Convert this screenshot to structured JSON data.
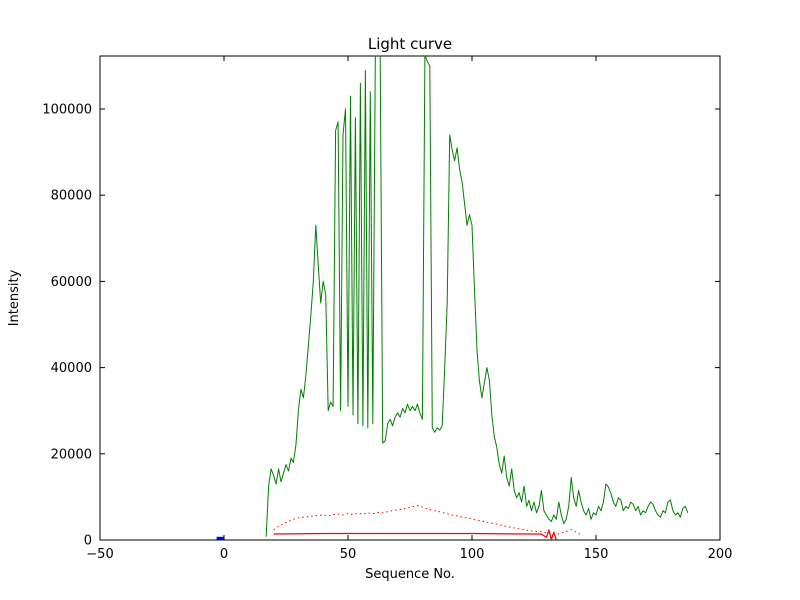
{
  "title": "Light curve",
  "chart_data": {
    "type": "line",
    "title": "Light curve",
    "xlabel": "Sequence No.",
    "ylabel": "Intensity",
    "xlim": [
      -50,
      200
    ],
    "ylim": [
      0,
      112300
    ],
    "xticks": [
      -50,
      0,
      50,
      100,
      150,
      200
    ],
    "xtick_labels": [
      "−50",
      "0",
      "50",
      "100",
      "150",
      "200"
    ],
    "yticks": [
      0,
      20000,
      40000,
      60000,
      80000,
      100000
    ],
    "ytick_labels": [
      "0",
      "20000",
      "40000",
      "60000",
      "80000",
      "100000"
    ],
    "grid": false,
    "legend": null,
    "background_color": "#ffffff",
    "axes_color": "#000000",
    "series": [
      {
        "name": "main-intensity-green",
        "color": "#008000",
        "style": "solid",
        "width": 1,
        "points": [
          [
            17,
            800
          ],
          [
            18,
            12500
          ],
          [
            19,
            16500
          ],
          [
            20,
            15000
          ],
          [
            21,
            13000
          ],
          [
            22,
            16500
          ],
          [
            23,
            13500
          ],
          [
            24,
            15500
          ],
          [
            25,
            17500
          ],
          [
            26,
            16000
          ],
          [
            27,
            19000
          ],
          [
            28,
            18000
          ],
          [
            29,
            22000
          ],
          [
            30,
            30000
          ],
          [
            31,
            35000
          ],
          [
            32,
            33000
          ],
          [
            33,
            38000
          ],
          [
            34,
            45000
          ],
          [
            35,
            52000
          ],
          [
            36,
            60000
          ],
          [
            37,
            73000
          ],
          [
            38,
            64000
          ],
          [
            39,
            55000
          ],
          [
            40,
            60000
          ],
          [
            41,
            57000
          ],
          [
            42,
            30000
          ],
          [
            43,
            32000
          ],
          [
            44,
            31000
          ],
          [
            45,
            95000
          ],
          [
            46,
            97000
          ],
          [
            47,
            30000
          ],
          [
            48,
            94000
          ],
          [
            49,
            100000
          ],
          [
            50,
            31000
          ],
          [
            51,
            103000
          ],
          [
            52,
            29000
          ],
          [
            53,
            98000
          ],
          [
            54,
            27000
          ],
          [
            55,
            106000
          ],
          [
            56,
            26500
          ],
          [
            57,
            109000
          ],
          [
            58,
            26000
          ],
          [
            59,
            104000
          ],
          [
            60,
            27000
          ],
          [
            61,
            112000
          ],
          [
            62,
            113500
          ],
          [
            63,
            112000
          ],
          [
            64,
            22500
          ],
          [
            65,
            23000
          ],
          [
            66,
            27000
          ],
          [
            67,
            28000
          ],
          [
            68,
            26500
          ],
          [
            69,
            28500
          ],
          [
            70,
            29500
          ],
          [
            71,
            28500
          ],
          [
            72,
            30500
          ],
          [
            73,
            29500
          ],
          [
            74,
            31500
          ],
          [
            75,
            30000
          ],
          [
            76,
            31000
          ],
          [
            77,
            30000
          ],
          [
            78,
            31500
          ],
          [
            79,
            29500
          ],
          [
            80,
            28000
          ],
          [
            81,
            112500
          ],
          [
            82,
            111000
          ],
          [
            83,
            110000
          ],
          [
            84,
            26000
          ],
          [
            85,
            25000
          ],
          [
            86,
            26000
          ],
          [
            87,
            25500
          ],
          [
            88,
            26500
          ],
          [
            89,
            40000
          ],
          [
            90,
            55000
          ],
          [
            91,
            94000
          ],
          [
            92,
            90500
          ],
          [
            93,
            88000
          ],
          [
            94,
            91000
          ],
          [
            95,
            86000
          ],
          [
            96,
            83000
          ],
          [
            97,
            78000
          ],
          [
            98,
            73000
          ],
          [
            99,
            75500
          ],
          [
            100,
            73000
          ],
          [
            101,
            58000
          ],
          [
            102,
            44000
          ],
          [
            103,
            37000
          ],
          [
            104,
            33000
          ],
          [
            105,
            36500
          ],
          [
            106,
            40000
          ],
          [
            107,
            37000
          ],
          [
            108,
            29000
          ],
          [
            109,
            24000
          ],
          [
            110,
            21500
          ],
          [
            111,
            17500
          ],
          [
            112,
            15500
          ],
          [
            113,
            19500
          ],
          [
            114,
            14500
          ],
          [
            115,
            12500
          ],
          [
            116,
            16500
          ],
          [
            117,
            11500
          ],
          [
            118,
            9800
          ],
          [
            119,
            11000
          ],
          [
            120,
            8800
          ],
          [
            121,
            12500
          ],
          [
            122,
            7800
          ],
          [
            123,
            9200
          ],
          [
            124,
            6800
          ],
          [
            125,
            8800
          ],
          [
            126,
            6300
          ],
          [
            127,
            7800
          ],
          [
            128,
            11500
          ],
          [
            129,
            6800
          ],
          [
            130,
            5800
          ],
          [
            131,
            4800
          ],
          [
            132,
            4300
          ],
          [
            133,
            5800
          ],
          [
            134,
            4800
          ],
          [
            135,
            8800
          ],
          [
            136,
            5800
          ],
          [
            137,
            3800
          ],
          [
            138,
            4800
          ],
          [
            139,
            7800
          ],
          [
            140,
            14500
          ],
          [
            141,
            9800
          ],
          [
            142,
            7800
          ],
          [
            143,
            11500
          ],
          [
            144,
            8800
          ],
          [
            145,
            6800
          ],
          [
            146,
            5800
          ],
          [
            147,
            7300
          ],
          [
            148,
            4800
          ],
          [
            149,
            6300
          ],
          [
            150,
            5800
          ],
          [
            151,
            7800
          ],
          [
            152,
            6800
          ],
          [
            153,
            8800
          ],
          [
            154,
            13000
          ],
          [
            155,
            12300
          ],
          [
            156,
            10800
          ],
          [
            157,
            8800
          ],
          [
            158,
            7800
          ],
          [
            159,
            9800
          ],
          [
            160,
            9300
          ],
          [
            161,
            6800
          ],
          [
            162,
            7800
          ],
          [
            163,
            7300
          ],
          [
            164,
            8800
          ],
          [
            165,
            8300
          ],
          [
            166,
            6800
          ],
          [
            167,
            7800
          ],
          [
            168,
            5800
          ],
          [
            169,
            6800
          ],
          [
            170,
            6300
          ],
          [
            171,
            7800
          ],
          [
            172,
            8800
          ],
          [
            173,
            8300
          ],
          [
            174,
            6800
          ],
          [
            175,
            5800
          ],
          [
            176,
            5300
          ],
          [
            177,
            6800
          ],
          [
            178,
            6300
          ],
          [
            179,
            8800
          ],
          [
            180,
            9300
          ],
          [
            181,
            6800
          ],
          [
            182,
            5800
          ],
          [
            183,
            6300
          ],
          [
            184,
            5300
          ],
          [
            185,
            7300
          ],
          [
            186,
            7800
          ],
          [
            187,
            6300
          ]
        ]
      },
      {
        "name": "secondary-intensity-red-dotted",
        "color": "#ff0000",
        "style": "dotted",
        "width": 1,
        "points": [
          [
            20,
            2400
          ],
          [
            22,
            3200
          ],
          [
            24,
            3800
          ],
          [
            26,
            4300
          ],
          [
            28,
            4800
          ],
          [
            30,
            5100
          ],
          [
            32,
            5300
          ],
          [
            34,
            5400
          ],
          [
            36,
            5600
          ],
          [
            38,
            5700
          ],
          [
            40,
            5800
          ],
          [
            42,
            5600
          ],
          [
            44,
            5900
          ],
          [
            46,
            6000
          ],
          [
            48,
            5800
          ],
          [
            50,
            6100
          ],
          [
            52,
            5900
          ],
          [
            54,
            6200
          ],
          [
            56,
            6000
          ],
          [
            58,
            6300
          ],
          [
            60,
            6100
          ],
          [
            62,
            6400
          ],
          [
            64,
            6300
          ],
          [
            66,
            6600
          ],
          [
            68,
            6800
          ],
          [
            70,
            7000
          ],
          [
            72,
            7100
          ],
          [
            74,
            7400
          ],
          [
            76,
            7700
          ],
          [
            78,
            8000
          ],
          [
            80,
            7600
          ],
          [
            82,
            7200
          ],
          [
            84,
            6900
          ],
          [
            86,
            6700
          ],
          [
            88,
            6400
          ],
          [
            90,
            6100
          ],
          [
            92,
            5800
          ],
          [
            94,
            5600
          ],
          [
            96,
            5300
          ],
          [
            98,
            5100
          ],
          [
            100,
            4900
          ],
          [
            102,
            4600
          ],
          [
            104,
            4400
          ],
          [
            106,
            4100
          ],
          [
            108,
            3900
          ],
          [
            110,
            3700
          ],
          [
            112,
            3400
          ],
          [
            114,
            3100
          ],
          [
            116,
            2900
          ],
          [
            118,
            2700
          ],
          [
            120,
            2500
          ],
          [
            122,
            2300
          ],
          [
            124,
            2100
          ],
          [
            126,
            2000
          ],
          [
            128,
            1900
          ],
          [
            130,
            1700
          ],
          [
            132,
            1500
          ],
          [
            134,
            1300
          ],
          [
            136,
            1600
          ],
          [
            138,
            2000
          ],
          [
            140,
            2400
          ],
          [
            142,
            1800
          ],
          [
            144,
            1200
          ]
        ]
      },
      {
        "name": "baseline-red-solid",
        "color": "#ff0000",
        "style": "solid",
        "width": 1.3,
        "points": [
          [
            20,
            1400
          ],
          [
            40,
            1500
          ],
          [
            60,
            1500
          ],
          [
            80,
            1500
          ],
          [
            100,
            1500
          ],
          [
            120,
            1400
          ],
          [
            128,
            1400
          ],
          [
            130,
            600
          ],
          [
            131,
            2300
          ],
          [
            132,
            100
          ],
          [
            133,
            1800
          ],
          [
            134,
            0
          ]
        ]
      },
      {
        "name": "start-marker-blue",
        "color": "#0000ff",
        "style": "solid",
        "width": 3,
        "points": [
          [
            -3,
            400
          ],
          [
            0,
            400
          ]
        ]
      }
    ]
  }
}
